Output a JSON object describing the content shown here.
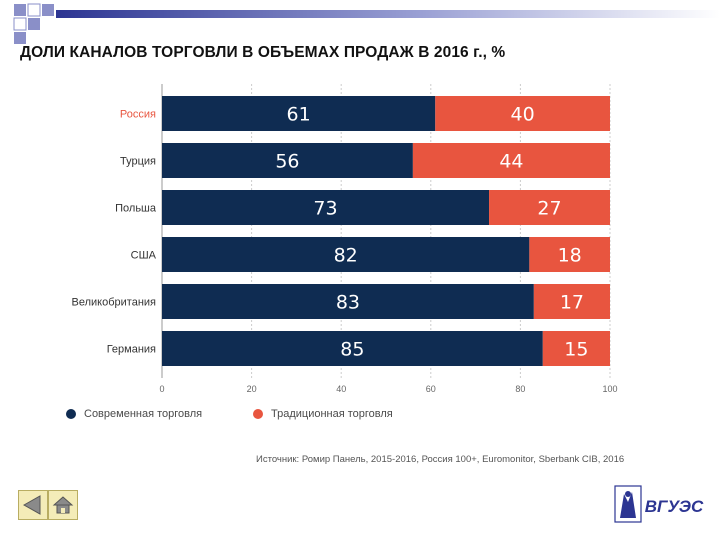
{
  "slide": {
    "title": "ДОЛИ КАНАЛОВ ТОРГОВЛИ В ОБЪЕМАХ ПРОДАЖ В 2016 г., %",
    "source": "Источник: Ромир Панель, 2015-2016, Россия 100+, Euromonitor, Sberbank CIB, 2016",
    "logo_text": "ВГУЭС",
    "colors": {
      "modern": "#0f2c52",
      "traditional": "#e8553f",
      "highlight_label": "#e8553f",
      "grid": "#cccccc",
      "corner_squares": "#8a8fc8"
    }
  },
  "nav": {
    "back_icon": "back-arrow-icon",
    "home_icon": "home-icon"
  },
  "chart_data": {
    "type": "bar",
    "orientation": "horizontal",
    "stacked": true,
    "categories": [
      "Россия",
      "Турция",
      "Польша",
      "США",
      "Великобритания",
      "Германия"
    ],
    "highlighted_category": "Россия",
    "series": [
      {
        "name": "Современная торговля",
        "values": [
          61,
          56,
          73,
          82,
          83,
          85
        ],
        "color": "#0f2c52"
      },
      {
        "name": "Традиционная торговля",
        "values": [
          40,
          44,
          27,
          18,
          17,
          15
        ],
        "color": "#e8553f"
      }
    ],
    "xlim": [
      0,
      100
    ],
    "xticks": [
      "0",
      "20",
      "40",
      "60",
      "80",
      "100"
    ],
    "grid": true,
    "legend": "bottom-left"
  }
}
